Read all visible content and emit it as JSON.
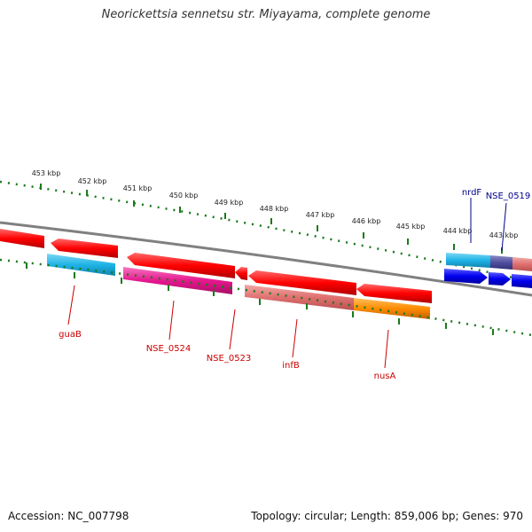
{
  "title": "Neorickettsia sennetsu str. Miyayama, complete genome",
  "footer": {
    "accession": "Accession: NC_007798",
    "stats": "Topology: circular; Length: 859,006 bp; Genes: 970"
  },
  "kbp_ticks": [
    "453 kbp",
    "452 kbp",
    "451 kbp",
    "450 kbp",
    "449 kbp",
    "448 kbp",
    "447 kbp",
    "446 kbp",
    "445 kbp",
    "444 kbp",
    "443 kbp"
  ],
  "genes": [
    {
      "label": "guaB",
      "color": "#cc0000"
    },
    {
      "label": "NSE_0524",
      "color": "#cc0000"
    },
    {
      "label": "NSE_0523",
      "color": "#cc0000"
    },
    {
      "label": "infB",
      "color": "#cc0000"
    },
    {
      "label": "nusA",
      "color": "#cc0000"
    },
    {
      "label": "nrdF",
      "color": "#00008b"
    },
    {
      "label": "NSE_0519",
      "color": "#00008b"
    }
  ],
  "colors": {
    "cds_reverse": "#ff0000",
    "cds_forward": "#0000ee",
    "backbone": "#808080",
    "tick_marks": "#1a7a1a",
    "outer_tick_ring": "#1a7a1a",
    "feature_cyan": "#1fb4e6",
    "feature_magenta": "#e6178f",
    "feature_salmon": "#e07070",
    "feature_orange": "#ff8c00",
    "feature_slate": "#5050a0"
  }
}
